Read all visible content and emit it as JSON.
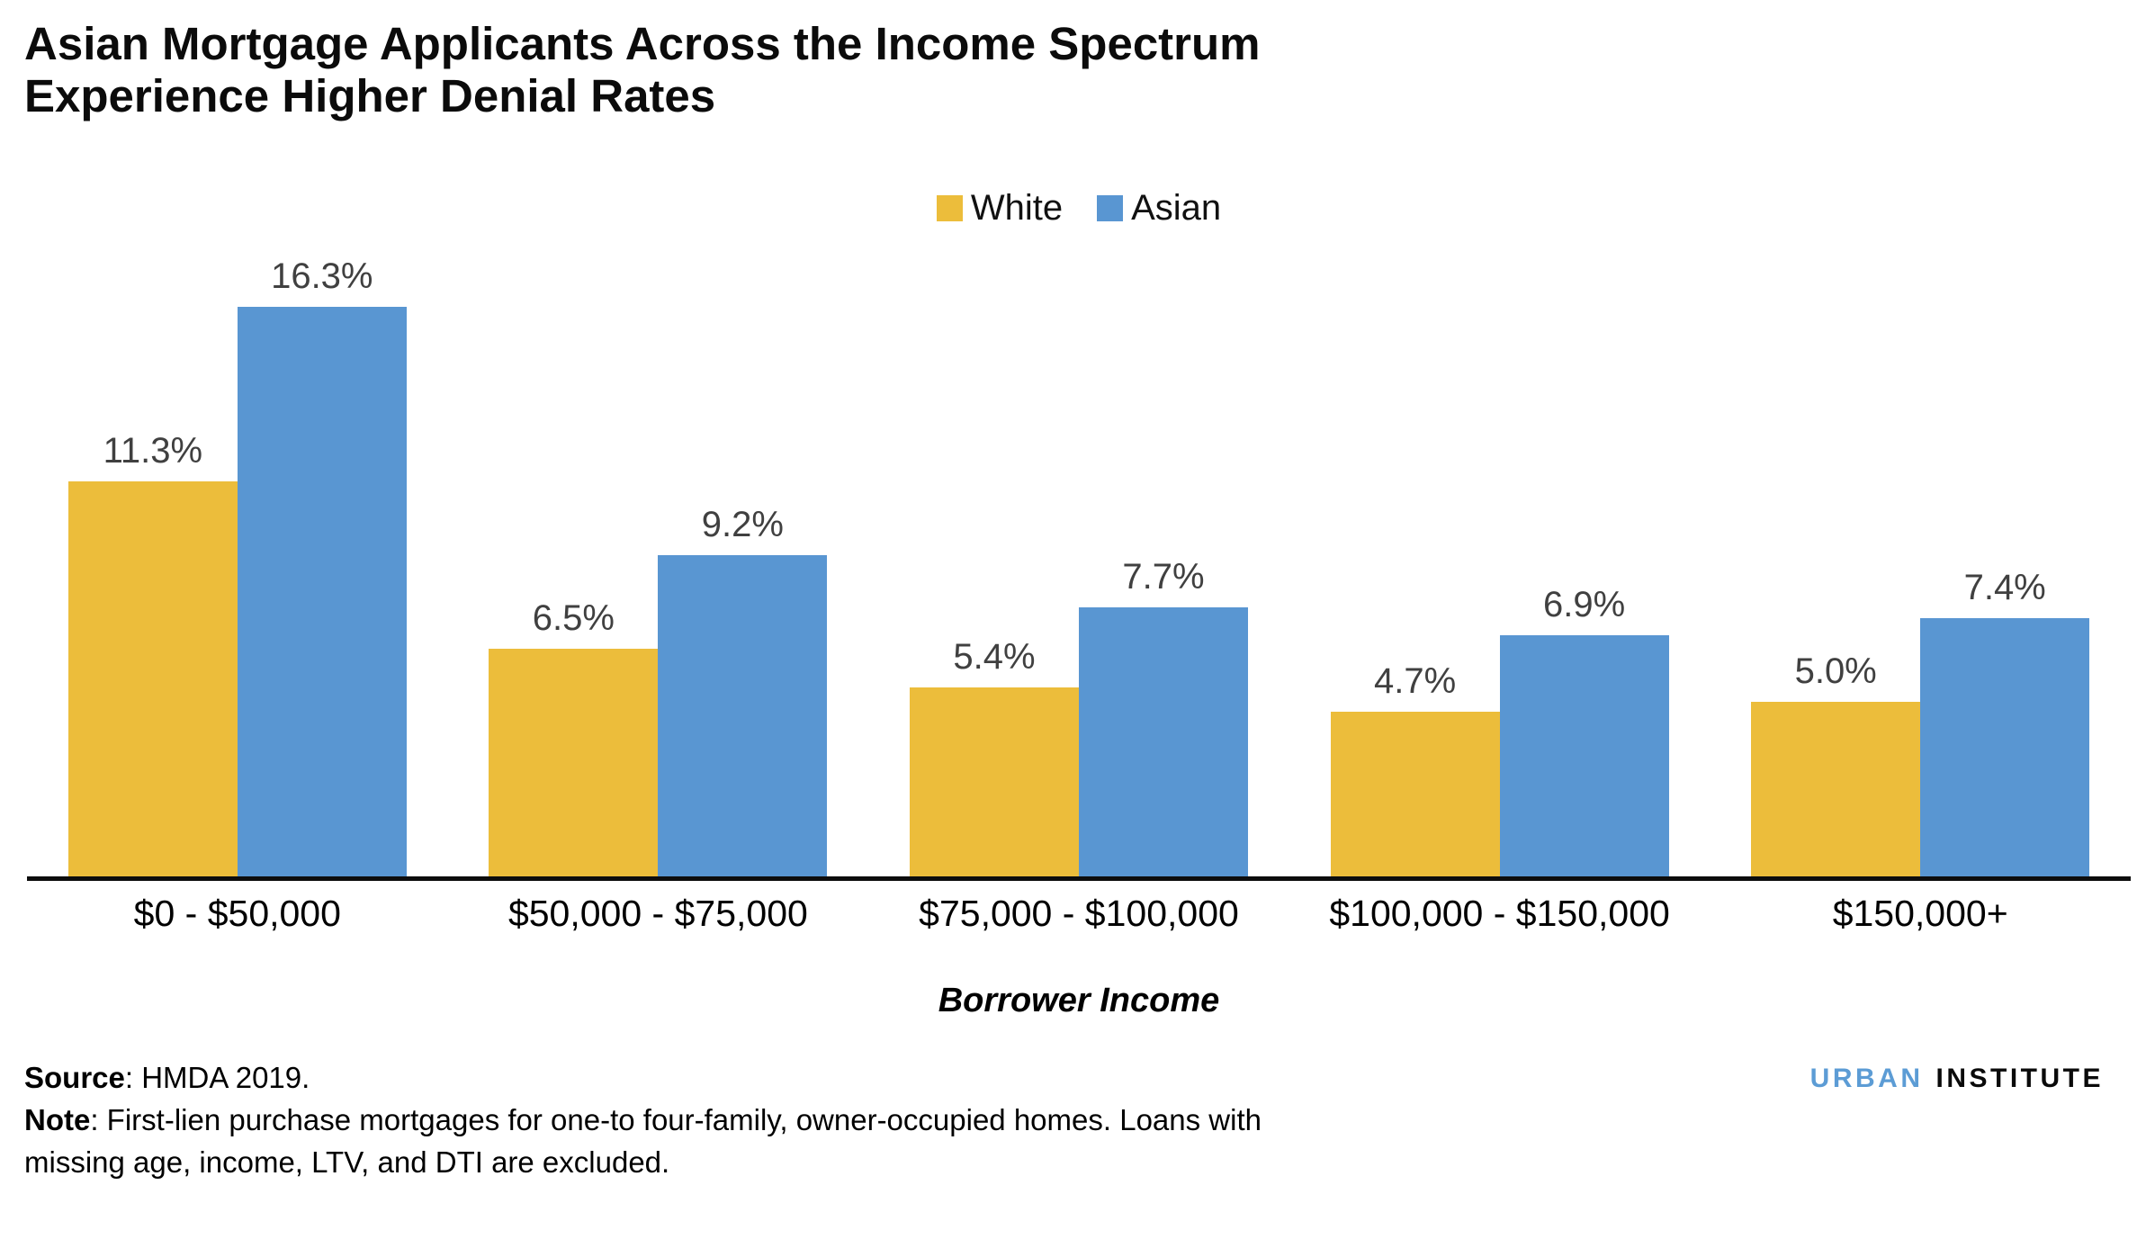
{
  "title": {
    "line1": "Asian Mortgage Applicants Across the Income Spectrum",
    "line2": "Experience Higher Denial Rates"
  },
  "chart_data": {
    "type": "bar",
    "categories": [
      "$0 - $50,000",
      "$50,000 - $75,000",
      "$75,000 - $100,000",
      "$100,000 - $150,000",
      "$150,000+"
    ],
    "series": [
      {
        "name": "White",
        "color": "#ECBD3B",
        "values": [
          11.3,
          6.5,
          5.4,
          4.7,
          5.0
        ],
        "labels": [
          "11.3%",
          "6.5%",
          "5.4%",
          "4.7%",
          "5.0%"
        ]
      },
      {
        "name": "Asian",
        "color": "#5996D2",
        "values": [
          16.3,
          9.2,
          7.7,
          6.9,
          7.4
        ],
        "labels": [
          "16.3%",
          "9.2%",
          "7.7%",
          "6.9%",
          "7.4%"
        ]
      }
    ],
    "xlabel": "Borrower Income",
    "ylabel": "",
    "ylim": [
      0,
      17
    ],
    "grid": false,
    "legend_position": "top-center",
    "value_labels_shown": true
  },
  "legend": {
    "items": [
      {
        "label": "White",
        "color": "#ECBD3B"
      },
      {
        "label": "Asian",
        "color": "#5996D2"
      }
    ]
  },
  "footer": {
    "source_label": "Source",
    "source_text": ": HMDA 2019.",
    "note_label": "Note",
    "note_text": ": First-lien purchase mortgages for one-to four-family, owner-occupied homes. Loans with missing age, income, LTV, and DTI are excluded."
  },
  "logo": {
    "part1": "URBAN",
    "part2": "INSTITUTE",
    "color1": "#5C9CD5",
    "color2": "#0A0A0A"
  }
}
